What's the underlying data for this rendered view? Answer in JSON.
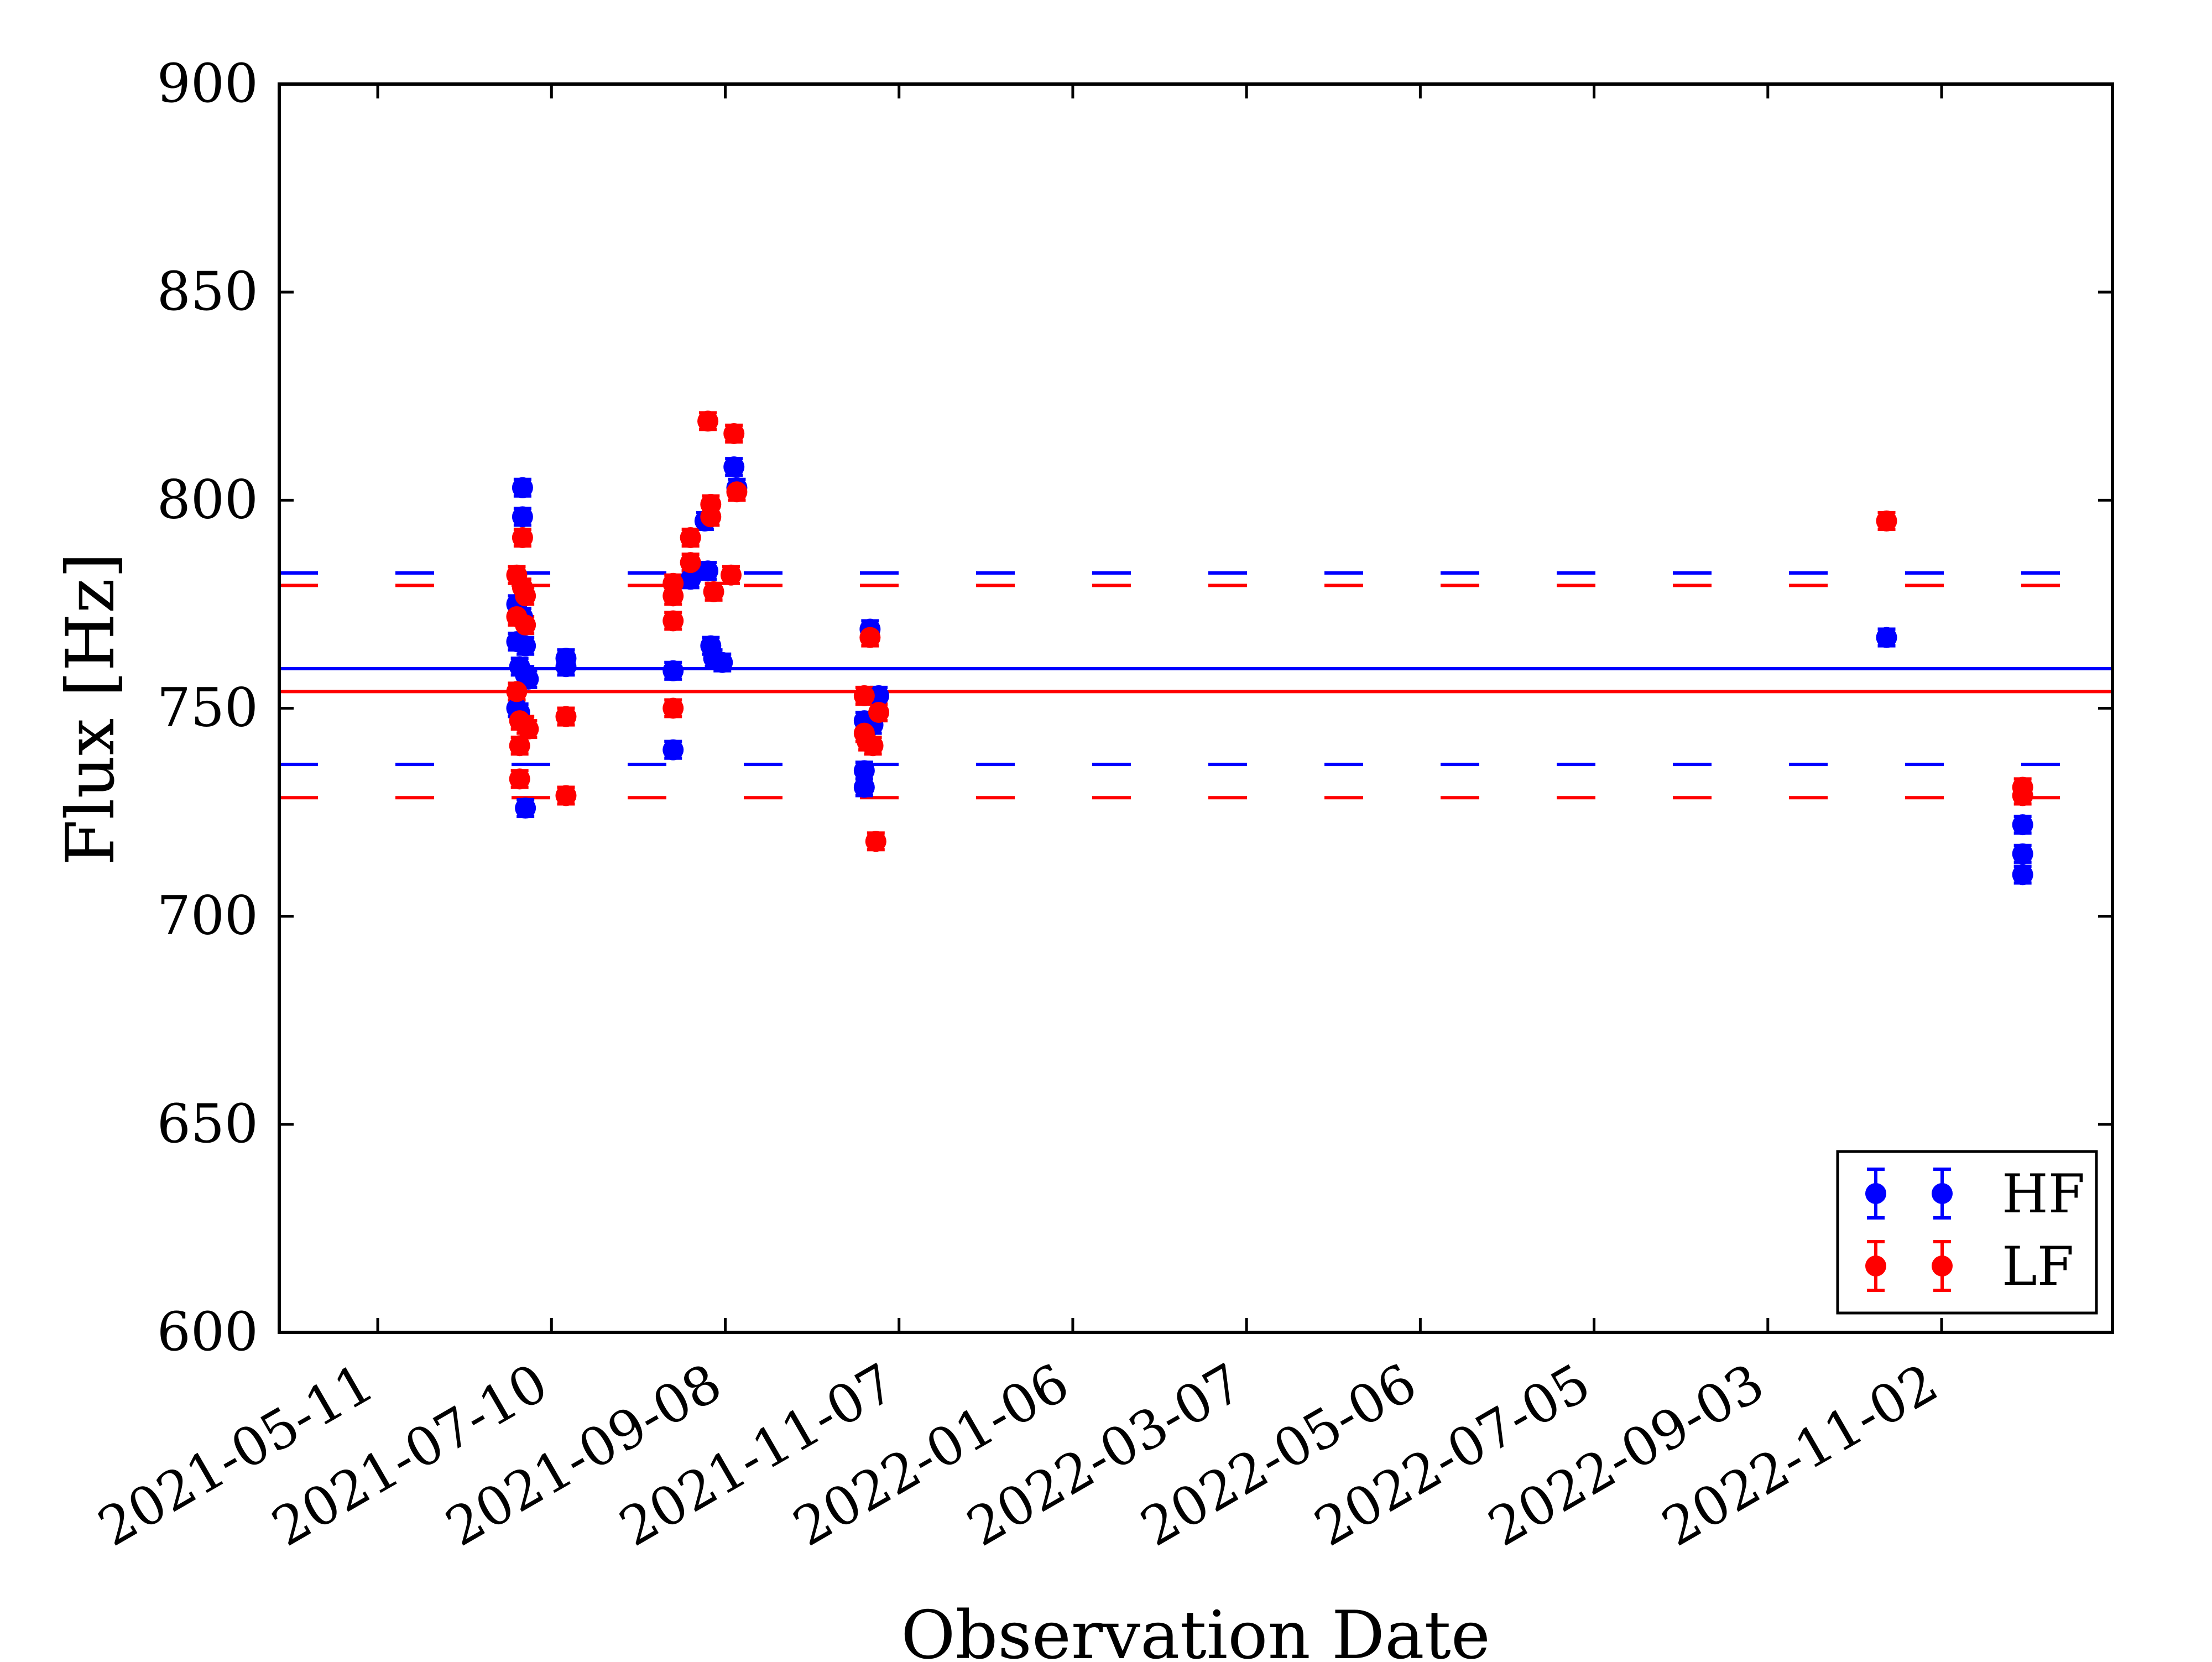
{
  "chart_data": {
    "type": "scatter",
    "xlabel": "Observation Date",
    "ylabel": "Flux [Hz]",
    "ylim": [
      600,
      900
    ],
    "xlim": [
      "2021-04-07",
      "2022-12-31"
    ],
    "grid": false,
    "legend_position": "bottom-right",
    "x_ticks": [
      "2021-05-11",
      "2021-07-10",
      "2021-09-08",
      "2021-11-07",
      "2022-01-06",
      "2022-03-07",
      "2022-05-06",
      "2022-07-05",
      "2022-09-03",
      "2022-11-02"
    ],
    "y_ticks": [
      "600",
      "650",
      "700",
      "750",
      "800",
      "850",
      "900"
    ],
    "reference_lines": [
      {
        "series": "HF",
        "mean": 759.5,
        "upper": 782.5,
        "lower": 736.5
      },
      {
        "series": "LF",
        "mean": 754.0,
        "upper": 779.5,
        "lower": 728.5
      }
    ],
    "series": [
      {
        "name": "HF",
        "color": "#0000ff",
        "error": 2,
        "points": [
          {
            "x": "2021-06-28",
            "y": 775
          },
          {
            "x": "2021-06-28",
            "y": 766
          },
          {
            "x": "2021-06-28",
            "y": 750
          },
          {
            "x": "2021-06-29",
            "y": 760
          },
          {
            "x": "2021-06-29",
            "y": 749
          },
          {
            "x": "2021-06-30",
            "y": 803
          },
          {
            "x": "2021-06-30",
            "y": 796
          },
          {
            "x": "2021-06-30",
            "y": 772
          },
          {
            "x": "2021-07-01",
            "y": 765
          },
          {
            "x": "2021-07-01",
            "y": 758
          },
          {
            "x": "2021-07-01",
            "y": 726
          },
          {
            "x": "2021-07-02",
            "y": 757
          },
          {
            "x": "2021-07-15",
            "y": 762
          },
          {
            "x": "2021-07-15",
            "y": 760
          },
          {
            "x": "2021-08-21",
            "y": 759
          },
          {
            "x": "2021-08-21",
            "y": 740
          },
          {
            "x": "2021-08-27",
            "y": 781
          },
          {
            "x": "2021-09-01",
            "y": 795
          },
          {
            "x": "2021-09-02",
            "y": 783
          },
          {
            "x": "2021-09-03",
            "y": 765
          },
          {
            "x": "2021-09-04",
            "y": 762
          },
          {
            "x": "2021-09-07",
            "y": 761
          },
          {
            "x": "2021-09-11",
            "y": 808
          },
          {
            "x": "2021-09-12",
            "y": 803
          },
          {
            "x": "2021-10-26",
            "y": 747
          },
          {
            "x": "2021-10-26",
            "y": 735
          },
          {
            "x": "2021-10-26",
            "y": 731
          },
          {
            "x": "2021-10-28",
            "y": 769
          },
          {
            "x": "2021-10-29",
            "y": 746
          },
          {
            "x": "2021-10-31",
            "y": 753
          },
          {
            "x": "2022-10-14",
            "y": 767
          },
          {
            "x": "2022-11-30",
            "y": 722
          },
          {
            "x": "2022-11-30",
            "y": 715
          },
          {
            "x": "2022-11-30",
            "y": 710
          }
        ]
      },
      {
        "name": "LF",
        "color": "#ff0000",
        "error": 2,
        "points": [
          {
            "x": "2021-06-28",
            "y": 782
          },
          {
            "x": "2021-06-28",
            "y": 772
          },
          {
            "x": "2021-06-28",
            "y": 754
          },
          {
            "x": "2021-06-29",
            "y": 747
          },
          {
            "x": "2021-06-29",
            "y": 741
          },
          {
            "x": "2021-06-29",
            "y": 733
          },
          {
            "x": "2021-06-30",
            "y": 791
          },
          {
            "x": "2021-06-30",
            "y": 779
          },
          {
            "x": "2021-07-01",
            "y": 777
          },
          {
            "x": "2021-07-01",
            "y": 770
          },
          {
            "x": "2021-07-01",
            "y": 746
          },
          {
            "x": "2021-07-02",
            "y": 745
          },
          {
            "x": "2021-07-15",
            "y": 748
          },
          {
            "x": "2021-07-15",
            "y": 729
          },
          {
            "x": "2021-08-21",
            "y": 780
          },
          {
            "x": "2021-08-21",
            "y": 777
          },
          {
            "x": "2021-08-21",
            "y": 771
          },
          {
            "x": "2021-08-21",
            "y": 750
          },
          {
            "x": "2021-08-27",
            "y": 791
          },
          {
            "x": "2021-08-27",
            "y": 785
          },
          {
            "x": "2021-09-02",
            "y": 819
          },
          {
            "x": "2021-09-03",
            "y": 799
          },
          {
            "x": "2021-09-03",
            "y": 796
          },
          {
            "x": "2021-09-04",
            "y": 778
          },
          {
            "x": "2021-09-11",
            "y": 816
          },
          {
            "x": "2021-09-10",
            "y": 782
          },
          {
            "x": "2021-09-12",
            "y": 802
          },
          {
            "x": "2021-10-26",
            "y": 753
          },
          {
            "x": "2021-10-26",
            "y": 744
          },
          {
            "x": "2021-10-27",
            "y": 742
          },
          {
            "x": "2021-10-28",
            "y": 767
          },
          {
            "x": "2021-10-29",
            "y": 741
          },
          {
            "x": "2021-10-31",
            "y": 749
          },
          {
            "x": "2021-10-30",
            "y": 718
          },
          {
            "x": "2022-10-14",
            "y": 795
          },
          {
            "x": "2022-11-30",
            "y": 731
          },
          {
            "x": "2022-11-30",
            "y": 729
          }
        ]
      }
    ]
  }
}
